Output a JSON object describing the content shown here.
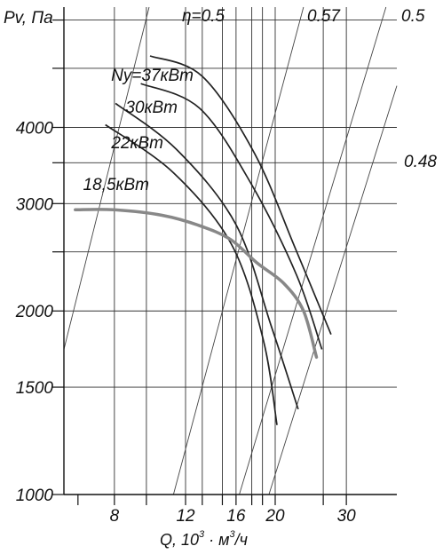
{
  "chart_data": {
    "type": "line",
    "x_scale": "log",
    "y_scale": "log",
    "xlim": [
      6,
      40
    ],
    "ylim": [
      1000,
      6300
    ],
    "ylabel": "Pv, Па",
    "xlabel_parts": [
      "Q, 10",
      "3",
      " · м",
      "3",
      "/ч"
    ],
    "x_ticks": [
      {
        "value": 8,
        "label": "8"
      },
      {
        "value": 12,
        "label": "12"
      },
      {
        "value": 16,
        "label": "16"
      },
      {
        "value": 20,
        "label": "20"
      },
      {
        "value": 30,
        "label": "30"
      }
    ],
    "x_minor_ticks": [
      6.5,
      9.6,
      13.2,
      14.8,
      17.5,
      18.6,
      26.3
    ],
    "y_ticks": [
      {
        "value": 1000,
        "label": "1000"
      },
      {
        "value": 1500,
        "label": "1500"
      },
      {
        "value": 2000,
        "label": "2000"
      },
      {
        "value": 3000,
        "label": "3000"
      },
      {
        "value": 4000,
        "label": "4000"
      }
    ],
    "y_minor_ticks": [
      2500,
      3500,
      5000,
      6000
    ],
    "grid": true,
    "grid_x": [
      8,
      9.6,
      12,
      13.2,
      14.8,
      16,
      17.5,
      18.6,
      20,
      26.3,
      30
    ],
    "efficiency_lines": [
      {
        "label": "η=0.5",
        "points": [
          [
            6,
            1730
          ],
          [
            9.75,
            6300
          ]
        ]
      },
      {
        "label": "0.57",
        "points": [
          [
            11.2,
            1000
          ],
          [
            23.5,
            6300
          ]
        ]
      },
      {
        "label": "0.5",
        "points": [
          [
            16.3,
            1000
          ],
          [
            37.6,
            6300
          ]
        ]
      },
      {
        "label": "0.48",
        "points": [
          [
            19.3,
            1000
          ],
          [
            40,
            4680
          ]
        ]
      }
    ],
    "power_curves": [
      {
        "label": "Ny=37кВт",
        "points": [
          [
            9.8,
            5240
          ],
          [
            13.2,
            4850
          ],
          [
            17.8,
            3620
          ],
          [
            22.5,
            2520
          ],
          [
            27.5,
            1830
          ]
        ]
      },
      {
        "label": "30кВт",
        "points": [
          [
            9.3,
            4720
          ],
          [
            13,
            4300
          ],
          [
            17.5,
            3220
          ],
          [
            22.6,
            2290
          ],
          [
            26.1,
            1730
          ]
        ]
      },
      {
        "label": "22кВт",
        "points": [
          [
            8.05,
            4380
          ],
          [
            11.4,
            3680
          ],
          [
            16,
            2770
          ],
          [
            19.6,
            1880
          ],
          [
            22.8,
            1380
          ]
        ]
      },
      {
        "label": "18,5кВт",
        "points": [
          [
            7.6,
            4040
          ],
          [
            11.2,
            3370
          ],
          [
            15.6,
            2570
          ],
          [
            18.7,
            1790
          ],
          [
            20.2,
            1300
          ]
        ]
      }
    ],
    "pressure_curve": {
      "points": [
        [
          6.4,
          2930
        ],
        [
          8,
          2930
        ],
        [
          10.5,
          2870
        ],
        [
          13,
          2760
        ],
        [
          15.5,
          2620
        ],
        [
          18,
          2400
        ],
        [
          21,
          2220
        ],
        [
          23.5,
          2000
        ],
        [
          25.3,
          1680
        ]
      ]
    }
  }
}
